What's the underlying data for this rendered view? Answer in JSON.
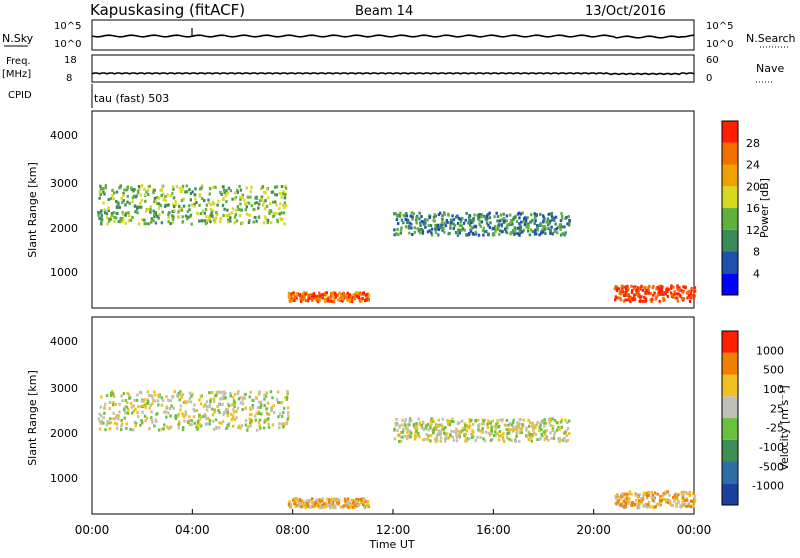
{
  "chart_data": {
    "type": "heatmap",
    "header": {
      "station": "Kapuskasing (fitACF)",
      "beam": "Beam 14",
      "date": "13/Oct/2016"
    },
    "noise_panel": {
      "left_label": "N.Sky",
      "right_label": "N.Search",
      "left_ticks": [
        "10^5",
        "10^0"
      ],
      "right_ticks": [
        "10^5",
        "10^0"
      ]
    },
    "freq_panel": {
      "left_label_1": "Freq.",
      "left_label_2": "[MHz]",
      "right_label": "Nave",
      "left_ticks": [
        "18",
        "8"
      ],
      "right_ticks": [
        "60",
        "0"
      ]
    },
    "cpid_panel": {
      "label": "CPID",
      "text": "tau (fast) 503"
    },
    "power_panel": {
      "ylabel": "Slant Range [km]",
      "yticks": [
        "4000",
        "3000",
        "2000",
        "1000"
      ],
      "colorbar_label": "Power [dB]",
      "colorbar_ticks": [
        "28",
        "24",
        "20",
        "16",
        "12",
        "8",
        "4"
      ],
      "colors": [
        "#0000ff",
        "#2050b0",
        "#3a8a5a",
        "#60b040",
        "#d8d820",
        "#f0a000",
        "#f07000",
        "#ff2000"
      ],
      "bands": [
        {
          "t0": 0.2,
          "t1": 7.8,
          "r0": 2050,
          "r1": 2900,
          "level": 3
        },
        {
          "t0": 7.8,
          "t1": 11.0,
          "r0": 350,
          "r1": 550,
          "level": 6
        },
        {
          "t0": 12.0,
          "t1": 19.0,
          "r0": 1800,
          "r1": 2300,
          "level": 2
        },
        {
          "t0": 20.8,
          "t1": 24.0,
          "r0": 350,
          "r1": 700,
          "level": 7
        }
      ]
    },
    "velocity_panel": {
      "ylabel": "Slant Range [km]",
      "yticks": [
        "4000",
        "3000",
        "2000",
        "1000"
      ],
      "colorbar_label": "Velocity [m s⁻¹]",
      "colorbar_ticks": [
        "1000",
        "500",
        "100",
        "25",
        "-25",
        "-100",
        "-500",
        "-1000"
      ],
      "colors": [
        "#1f3fa0",
        "#2e6ea8",
        "#3e8e55",
        "#6cc040",
        "#c0c0b8",
        "#f0c020",
        "#f08000",
        "#ff2000"
      ],
      "bands": [
        {
          "t0": 0.2,
          "t1": 7.8,
          "r0": 2050,
          "r1": 2900,
          "level": 4
        },
        {
          "t0": 7.8,
          "t1": 11.0,
          "r0": 350,
          "r1": 550,
          "level": 5
        },
        {
          "t0": 12.0,
          "t1": 19.0,
          "r0": 1800,
          "r1": 2300,
          "level": 4
        },
        {
          "t0": 20.8,
          "t1": 24.0,
          "r0": 350,
          "r1": 700,
          "level": 5
        }
      ]
    },
    "x_axis": {
      "label": "Time UT",
      "ticks": [
        "00:00",
        "04:00",
        "08:00",
        "12:00",
        "16:00",
        "20:00",
        "00:00"
      ]
    }
  }
}
